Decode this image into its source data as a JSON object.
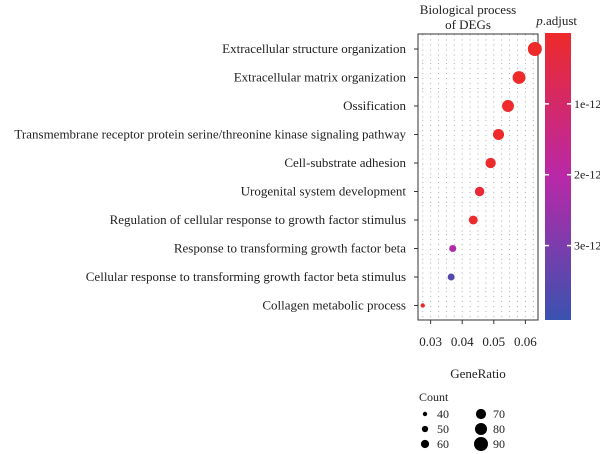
{
  "chart_data": {
    "type": "scatter",
    "title": "Biological process of DEGs",
    "xlabel": "GeneRatio",
    "ylabel": "",
    "xlim": [
      0.026,
      0.064
    ],
    "xticks": [
      0.03,
      0.04,
      0.05,
      0.06
    ],
    "xtick_labels": [
      "0.03",
      "0.04",
      "0.05",
      "0.06"
    ],
    "grid": true,
    "categories": [
      "Extracellular structure organization",
      "Extracellular matrix organization",
      "Ossification",
      "Transmembrane receptor protein serine/threonine kinase signaling pathway",
      "Cell-substrate adhesion",
      "Urogenital system development",
      "Regulation of cellular response to growth factor stimulus",
      "Response to transforming growth factor beta",
      "Cellular response to transforming growth factor beta stimulus",
      "Collagen metabolic process"
    ],
    "points": [
      {
        "term": "Extracellular structure organization",
        "gene_ratio": 0.063,
        "count": 90,
        "p_adjust": 5e-15
      },
      {
        "term": "Extracellular matrix organization",
        "gene_ratio": 0.058,
        "count": 84,
        "p_adjust": 5e-15
      },
      {
        "term": "Ossification",
        "gene_ratio": 0.0545,
        "count": 79,
        "p_adjust": 1e-14
      },
      {
        "term": "Transmembrane receptor protein serine/threonine kinase signaling pathway",
        "gene_ratio": 0.0515,
        "count": 75,
        "p_adjust": 1e-14
      },
      {
        "term": "Cell-substrate adhesion",
        "gene_ratio": 0.049,
        "count": 71,
        "p_adjust": 2e-14
      },
      {
        "term": "Urogenital system development",
        "gene_ratio": 0.0455,
        "count": 66,
        "p_adjust": 2e-13
      },
      {
        "term": "Regulation of cellular response to growth factor stimulus",
        "gene_ratio": 0.0435,
        "count": 63,
        "p_adjust": 3e-14
      },
      {
        "term": "Response to transforming growth factor beta",
        "gene_ratio": 0.037,
        "count": 54,
        "p_adjust": 2.2e-12
      },
      {
        "term": "Cellular response to transforming growth factor beta stimulus",
        "gene_ratio": 0.0365,
        "count": 53,
        "p_adjust": 3.6e-12
      },
      {
        "term": "Collagen metabolic process",
        "gene_ratio": 0.0275,
        "count": 40,
        "p_adjust": 2e-14
      }
    ],
    "color_legend": {
      "title": "p.adjust",
      "min": 0,
      "max": 4.05e-12,
      "ticks": [
        1e-12,
        2e-12,
        3e-12
      ],
      "tick_labels": [
        "1e-12",
        "2e-12",
        "3e-12"
      ],
      "low_color": "#ee2a2a",
      "mid_color": "#b928a8",
      "high_color": "#3a52b0"
    },
    "size_legend": {
      "title": "Count",
      "values": [
        40,
        50,
        60,
        70,
        80,
        90
      ],
      "labels": [
        "40",
        "50",
        "60",
        "70",
        "80",
        "90"
      ]
    }
  }
}
